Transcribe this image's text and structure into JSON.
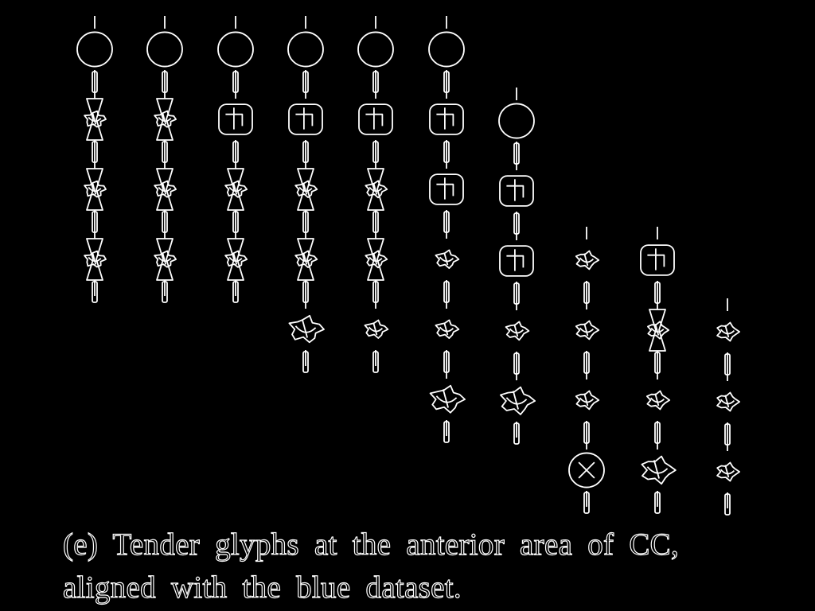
{
  "figure": {
    "caption_line1": "(e) Tender glyphs at the anterior area of CC,",
    "caption_line2": "aligned with the blue dataset.",
    "colors": {
      "background": "#000000",
      "stroke": "#ffffff"
    },
    "columns": [
      {
        "id": "col-1",
        "glyphs": [
          "sphere",
          "knot-hourglass",
          "knot-hourglass",
          "knot-hourglass"
        ]
      },
      {
        "id": "col-2",
        "glyphs": [
          "sphere",
          "knot-hourglass",
          "knot-hourglass",
          "knot-hourglass"
        ]
      },
      {
        "id": "col-3",
        "glyphs": [
          "sphere",
          "cube",
          "knot-hourglass",
          "knot-hourglass"
        ]
      },
      {
        "id": "col-4",
        "glyphs": [
          "sphere",
          "cube",
          "knot-hourglass",
          "knot-hourglass",
          "knot-large"
        ]
      },
      {
        "id": "col-5",
        "glyphs": [
          "sphere",
          "cube",
          "knot-hourglass",
          "knot-hourglass",
          "knot"
        ]
      },
      {
        "id": "col-6",
        "glyphs": [
          "sphere",
          "cube",
          "cube",
          "knot",
          "knot",
          "knot-large"
        ]
      },
      {
        "id": "col-7",
        "glyphs": [
          "sphere",
          "cube",
          "cube",
          "knot",
          "knot-large"
        ]
      },
      {
        "id": "col-8",
        "glyphs": [
          "knot",
          "knot",
          "knot",
          "sphere-cross"
        ]
      },
      {
        "id": "col-9",
        "glyphs": [
          "cube",
          "knot-hourglass",
          "knot",
          "knot-large"
        ]
      },
      {
        "id": "col-10",
        "glyphs": [
          "knot",
          "knot",
          "knot"
        ]
      }
    ]
  }
}
